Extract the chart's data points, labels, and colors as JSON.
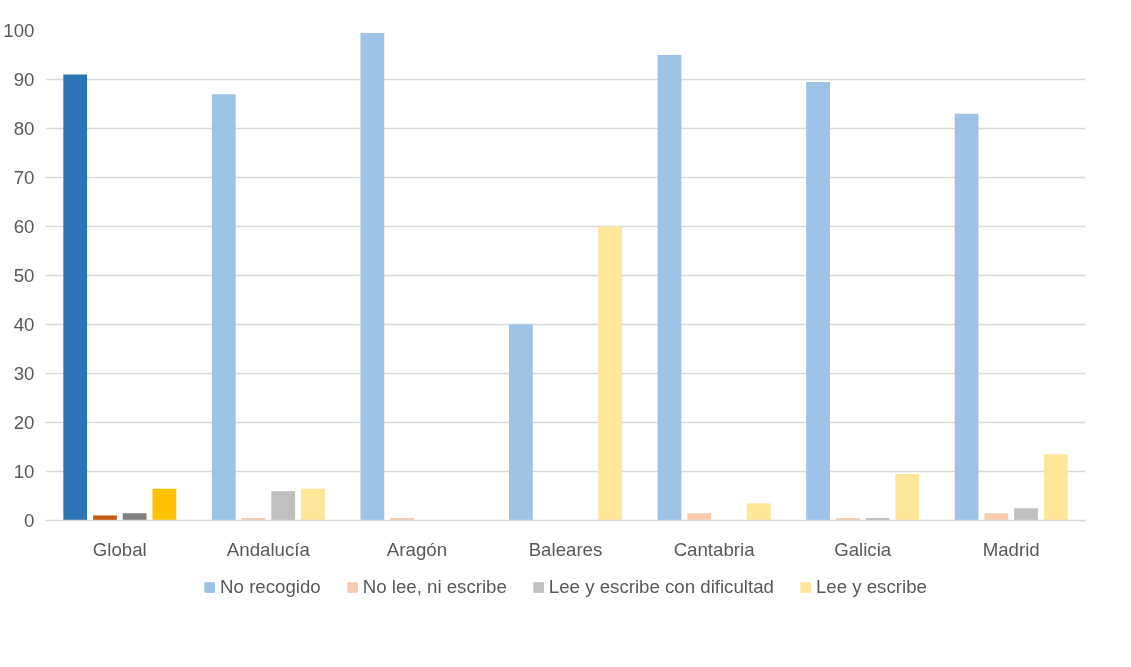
{
  "chart_data": {
    "type": "bar",
    "categories": [
      "Global",
      "Andalucía",
      "Aragón",
      "Baleares",
      "Cantabria",
      "Galicia",
      "Madrid"
    ],
    "series": [
      {
        "name": "No recogido",
        "color": "#9dc3e6",
        "colors": [
          "#2e75b6",
          "#9dc3e6",
          "#9dc3e6",
          "#9dc3e6",
          "#9dc3e6",
          "#9dc3e6",
          "#9dc3e6"
        ],
        "values": [
          91,
          87,
          99.5,
          40,
          95,
          89.5,
          83
        ]
      },
      {
        "name": "No lee, ni escribe",
        "color": "#f8cbad",
        "colors": [
          "#c55a11",
          "#f8cbad",
          "#f8cbad",
          "#f8cbad",
          "#f8cbad",
          "#f8cbad",
          "#f8cbad"
        ],
        "values": [
          1,
          0.5,
          0.5,
          0,
          1.5,
          0.5,
          1.5
        ]
      },
      {
        "name": "Lee y escribe con dificultad",
        "color": "#bfbfbf",
        "colors": [
          "#7f7f7f",
          "#bfbfbf",
          "#bfbfbf",
          "#bfbfbf",
          "#bfbfbf",
          "#bfbfbf",
          "#bfbfbf"
        ],
        "values": [
          1.5,
          6,
          0,
          0,
          0,
          0.5,
          2.5
        ]
      },
      {
        "name": "Lee y escribe",
        "color": "#ffe699",
        "colors": [
          "#ffc000",
          "#ffe699",
          "#ffe699",
          "#ffe699",
          "#ffe699",
          "#ffe699",
          "#ffe699"
        ],
        "values": [
          6.5,
          6.5,
          0,
          60,
          3.5,
          9.5,
          13.5
        ]
      }
    ],
    "ylim": [
      0,
      100
    ],
    "yticks": [
      0,
      10,
      20,
      30,
      40,
      50,
      60,
      70,
      80,
      90,
      100
    ],
    "grid": "y",
    "legend": "bottom"
  }
}
